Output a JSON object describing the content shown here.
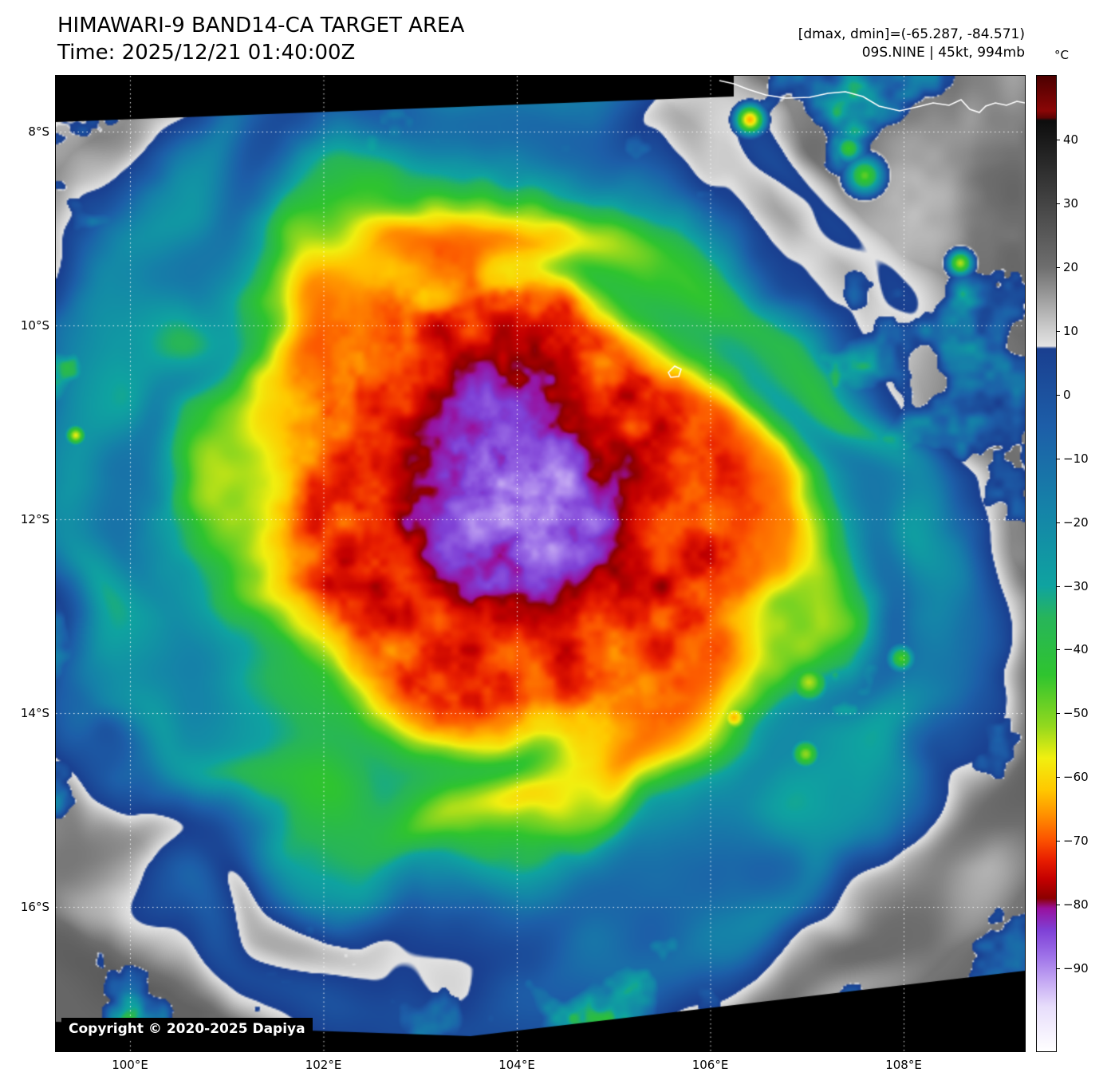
{
  "header": {
    "title": "HIMAWARI-9 BAND14-CA TARGET AREA",
    "time_line": "Time: 2025/12/21 01:40:00Z",
    "dmax_dmin": "[dmax, dmin]=(-65.287, -84.571)",
    "storm_info": "09S.NINE | 45kt, 994mb"
  },
  "map": {
    "copyright": "Copyright © 2020-2025 Dapiya",
    "lat_ticks": [
      {
        "deg": 8,
        "label": "8°S"
      },
      {
        "deg": 10,
        "label": "10°S"
      },
      {
        "deg": 12,
        "label": "12°S"
      },
      {
        "deg": 14,
        "label": "14°S"
      },
      {
        "deg": 16,
        "label": "16°S"
      }
    ],
    "lon_ticks": [
      {
        "deg": 100,
        "label": "100°E"
      },
      {
        "deg": 102,
        "label": "102°E"
      },
      {
        "deg": 104,
        "label": "104°E"
      },
      {
        "deg": 106,
        "label": "106°E"
      },
      {
        "deg": 108,
        "label": "108°E"
      }
    ],
    "grid_color": "#ffffff",
    "coastline_color": "#ffffff",
    "scan_edge_color": "#000000"
  },
  "colorbar": {
    "unit": "°C",
    "range": [
      50,
      -103
    ],
    "ticks": [
      {
        "value": 40,
        "label": "40"
      },
      {
        "value": 30,
        "label": "30"
      },
      {
        "value": 20,
        "label": "20"
      },
      {
        "value": 10,
        "label": "10"
      },
      {
        "value": 0,
        "label": "0"
      },
      {
        "value": -10,
        "label": "−10"
      },
      {
        "value": -20,
        "label": "−20"
      },
      {
        "value": -30,
        "label": "−30"
      },
      {
        "value": -40,
        "label": "−40"
      },
      {
        "value": -50,
        "label": "−50"
      },
      {
        "value": -60,
        "label": "−60"
      },
      {
        "value": -70,
        "label": "−70"
      },
      {
        "value": -80,
        "label": "−80"
      },
      {
        "value": -90,
        "label": "−90"
      }
    ],
    "stops": [
      [
        50,
        "#4c0000"
      ],
      [
        44.5,
        "#8a0606"
      ],
      [
        43.4,
        "#5c0404"
      ],
      [
        43,
        "#0d0d0d"
      ],
      [
        20,
        "#6e6e6e"
      ],
      [
        10,
        "#cfcfcf"
      ],
      [
        7.6,
        "#e3e3e3"
      ],
      [
        7.2,
        "#1a3f90"
      ],
      [
        -5,
        "#1d5ea8"
      ],
      [
        -18,
        "#1583a8"
      ],
      [
        -30,
        "#0fa3a0"
      ],
      [
        -35,
        "#27b55a"
      ],
      [
        -44,
        "#2fc42f"
      ],
      [
        -52,
        "#93d81e"
      ],
      [
        -57,
        "#f1ef10"
      ],
      [
        -62,
        "#ffc800"
      ],
      [
        -66,
        "#ff8f00"
      ],
      [
        -70,
        "#fb5000"
      ],
      [
        -73,
        "#e81e00"
      ],
      [
        -76,
        "#c40000"
      ],
      [
        -79,
        "#8c0000"
      ],
      [
        -80.6,
        "#98119e"
      ],
      [
        -84,
        "#7f40d6"
      ],
      [
        -88,
        "#9d71e8"
      ],
      [
        -92,
        "#c4a8f3"
      ],
      [
        -96,
        "#e7ddfb"
      ],
      [
        -103,
        "#ffffff"
      ]
    ]
  }
}
